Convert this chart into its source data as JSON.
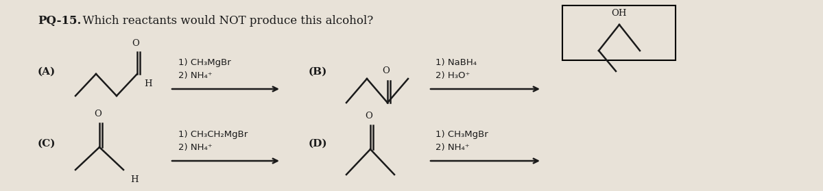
{
  "title": "PQ-15.",
  "question": "  Which reactants would NOT produce this alcohol?",
  "bg_color": "#e8e2d8",
  "text_color": "#1a1a1a",
  "font_size_title": 12,
  "font_size_labels": 11,
  "font_size_reagents": 9.5,
  "label_A": "(A)",
  "label_B": "(B)",
  "label_C": "(C)",
  "label_D": "(D)",
  "reagents_A": "1) CH₃MgBr\n2) NH₄⁺",
  "reagents_B": "1) NaBH₄\n2) H₃O⁺",
  "reagents_C": "1) CH₃CH₂MgBr\n2) NH₄⁺",
  "reagents_D": "1) CH₃MgBr\n2) NH₄⁺"
}
